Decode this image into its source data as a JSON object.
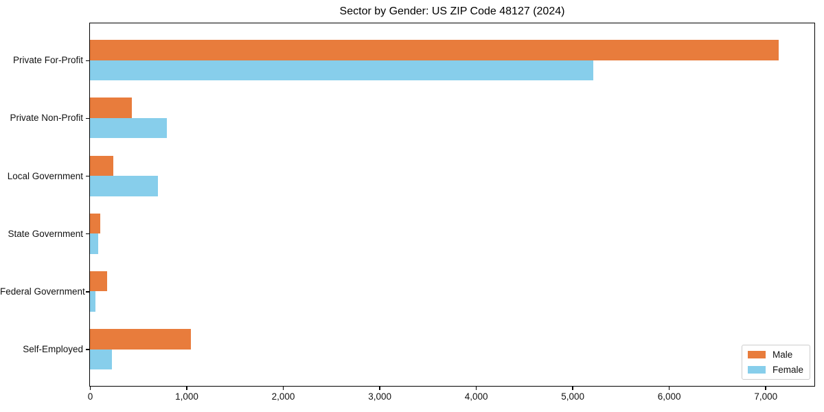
{
  "chart_data": {
    "type": "bar",
    "orientation": "horizontal",
    "title": "Sector by Gender: US ZIP Code 48127 (2024)",
    "categories": [
      "Private For-Profit",
      "Private Non-Profit",
      "Local Government",
      "State Government",
      "Federal Government",
      "Self-Employed"
    ],
    "series": [
      {
        "name": "Male",
        "color": "#e87c3c",
        "values": [
          7135,
          435,
          240,
          110,
          175,
          1045
        ]
      },
      {
        "name": "Female",
        "color": "#87ceeb",
        "values": [
          5215,
          795,
          705,
          85,
          58,
          230
        ]
      }
    ],
    "xlim": [
      0,
      7500
    ],
    "x_ticks": [
      0,
      1000,
      2000,
      3000,
      4000,
      5000,
      6000,
      7000
    ],
    "x_tick_labels": [
      "0",
      "1,000",
      "2,000",
      "3,000",
      "4,000",
      "5,000",
      "6,000",
      "7,000"
    ],
    "ylabel": "",
    "xlabel": "",
    "grid": false,
    "legend": {
      "position": "lower right",
      "entries": [
        "Male",
        "Female"
      ]
    },
    "colors": {
      "background": "#ffffff",
      "spine": "#000000",
      "legend_border": "#cccccc"
    }
  }
}
